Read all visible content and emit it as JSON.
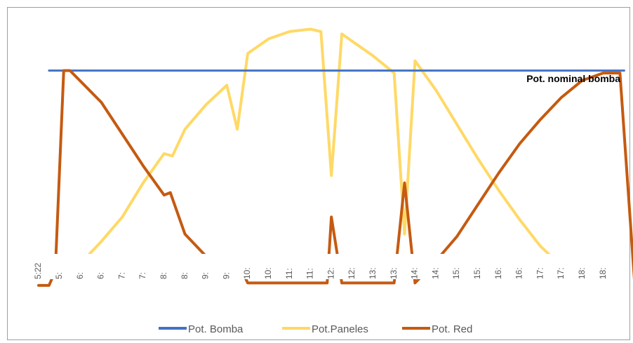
{
  "chart_data": {
    "type": "line",
    "title": "",
    "xlabel": "",
    "ylabel": "",
    "x": [
      "5:22",
      "5:",
      "6:",
      "6:",
      "7:",
      "7:",
      "8:",
      "8:",
      "9:",
      "9:",
      "10:",
      "10:",
      "11:",
      "11:",
      "12:",
      "12:",
      "13:",
      "13:",
      "14:",
      "14:",
      "15:",
      "15:",
      "16:",
      "16:",
      "17:",
      "17:",
      "18:",
      "18:"
    ],
    "annotation": "Pot. nominal bomba",
    "legend_position": "bottom",
    "grid": false,
    "series": [
      {
        "name": "Pot. Bomba",
        "color": "#4472C4",
        "points": [
          [
            0.5,
            82
          ],
          [
            28.0,
            82
          ]
        ]
      },
      {
        "name": "Pot.Paneles",
        "color": "#FFD966",
        "points": [
          [
            1.0,
            0
          ],
          [
            2.0,
            3
          ],
          [
            3.0,
            12
          ],
          [
            4.0,
            22
          ],
          [
            5.0,
            36
          ],
          [
            6.0,
            48
          ],
          [
            6.4,
            47
          ],
          [
            7.0,
            58
          ],
          [
            8.0,
            68
          ],
          [
            9.0,
            76
          ],
          [
            9.5,
            58
          ],
          [
            10.0,
            89
          ],
          [
            11.0,
            95
          ],
          [
            12.0,
            98
          ],
          [
            13.0,
            99
          ],
          [
            13.5,
            98
          ],
          [
            14.0,
            39
          ],
          [
            14.5,
            97
          ],
          [
            15.0,
            94
          ],
          [
            16.0,
            88
          ],
          [
            17.0,
            81
          ],
          [
            17.5,
            15
          ],
          [
            18.0,
            86
          ],
          [
            19.0,
            74
          ],
          [
            20.0,
            60
          ],
          [
            21.0,
            46
          ],
          [
            22.0,
            33
          ],
          [
            23.0,
            21
          ],
          [
            24.0,
            10
          ],
          [
            25.0,
            2
          ],
          [
            25.5,
            0
          ]
        ]
      },
      {
        "name": "Pot. Red",
        "color": "#C55A11",
        "points": [
          [
            0.0,
            -6
          ],
          [
            0.5,
            -6
          ],
          [
            0.8,
            0
          ],
          [
            1.2,
            82
          ],
          [
            1.5,
            82
          ],
          [
            3.0,
            69
          ],
          [
            4.0,
            56
          ],
          [
            5.0,
            43
          ],
          [
            6.0,
            31
          ],
          [
            6.3,
            32
          ],
          [
            7.0,
            15
          ],
          [
            8.0,
            6
          ],
          [
            9.0,
            2
          ],
          [
            9.5,
            4
          ],
          [
            10.0,
            -5
          ],
          [
            11.0,
            -5
          ],
          [
            12.0,
            -5
          ],
          [
            13.0,
            -5
          ],
          [
            13.8,
            -5
          ],
          [
            14.0,
            22
          ],
          [
            14.5,
            -5
          ],
          [
            17.0,
            -5
          ],
          [
            17.5,
            36
          ],
          [
            18.0,
            -5
          ],
          [
            19.0,
            4
          ],
          [
            20.0,
            14
          ],
          [
            21.0,
            27
          ],
          [
            22.0,
            40
          ],
          [
            23.0,
            52
          ],
          [
            24.0,
            62
          ],
          [
            25.0,
            71
          ],
          [
            26.0,
            78
          ],
          [
            27.0,
            81
          ],
          [
            27.8,
            81
          ],
          [
            28.5,
            -5
          ]
        ]
      }
    ]
  },
  "colors": {
    "bomba": "#4472C4",
    "paneles": "#FFD966",
    "red": "#C55A11"
  }
}
